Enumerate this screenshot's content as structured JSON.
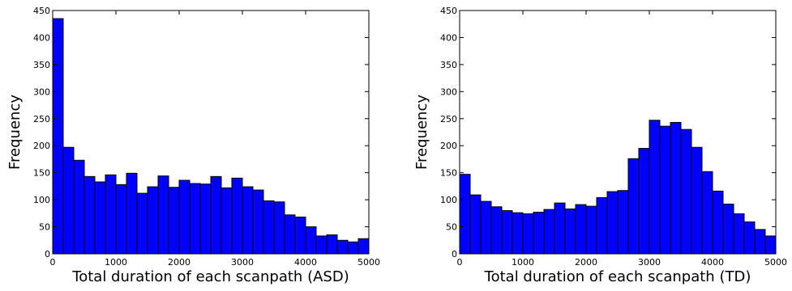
{
  "chart_data": [
    {
      "type": "bar",
      "title": "",
      "xlabel": "Total duration of each scanpath (ASD)",
      "ylabel": "Frequency",
      "xlim": [
        0,
        5000
      ],
      "ylim": [
        0,
        450
      ],
      "xticks": [
        "0",
        "1000",
        "2000",
        "3000",
        "4000",
        "5000"
      ],
      "yticks": [
        "0",
        "50",
        "100",
        "150",
        "200",
        "250",
        "300",
        "350",
        "400",
        "450"
      ],
      "bar_color": "#0000ff",
      "bin_edges": [
        0,
        166.7,
        333.3,
        500,
        666.7,
        833.3,
        1000,
        1166.7,
        1333.3,
        1500,
        1666.7,
        1833.3,
        2000,
        2166.7,
        2333.3,
        2500,
        2666.7,
        2833.3,
        3000,
        3166.7,
        3333.3,
        3500,
        3666.7,
        3833.3,
        4000,
        4166.7,
        4333.3,
        4500,
        4666.7,
        4833.3,
        5000
      ],
      "values": [
        435,
        197,
        173,
        143,
        133,
        146,
        128,
        149,
        112,
        124,
        144,
        123,
        136,
        130,
        129,
        143,
        122,
        140,
        124,
        118,
        98,
        96,
        72,
        68,
        50,
        33,
        35,
        25,
        22,
        28
      ],
      "grid": false
    },
    {
      "type": "bar",
      "title": "",
      "xlabel": "Total duration of each scanpath (TD)",
      "ylabel": "Frequency",
      "xlim": [
        0,
        5000
      ],
      "ylim": [
        0,
        450
      ],
      "xticks": [
        "0",
        "1000",
        "2000",
        "3000",
        "4000",
        "5000"
      ],
      "yticks": [
        "0",
        "50",
        "100",
        "150",
        "200",
        "250",
        "300",
        "350",
        "400",
        "450"
      ],
      "bar_color": "#0000ff",
      "bin_edges": [
        0,
        166.7,
        333.3,
        500,
        666.7,
        833.3,
        1000,
        1166.7,
        1333.3,
        1500,
        1666.7,
        1833.3,
        2000,
        2166.7,
        2333.3,
        2500,
        2666.7,
        2833.3,
        3000,
        3166.7,
        3333.3,
        3500,
        3666.7,
        3833.3,
        4000,
        4166.7,
        4333.3,
        4500,
        4666.7,
        4833.3,
        5000
      ],
      "values": [
        147,
        109,
        97,
        87,
        80,
        76,
        74,
        77,
        82,
        94,
        83,
        91,
        88,
        104,
        115,
        117,
        176,
        195,
        247,
        236,
        243,
        230,
        197,
        152,
        116,
        92,
        74,
        59,
        45,
        33
      ],
      "grid": false
    }
  ]
}
